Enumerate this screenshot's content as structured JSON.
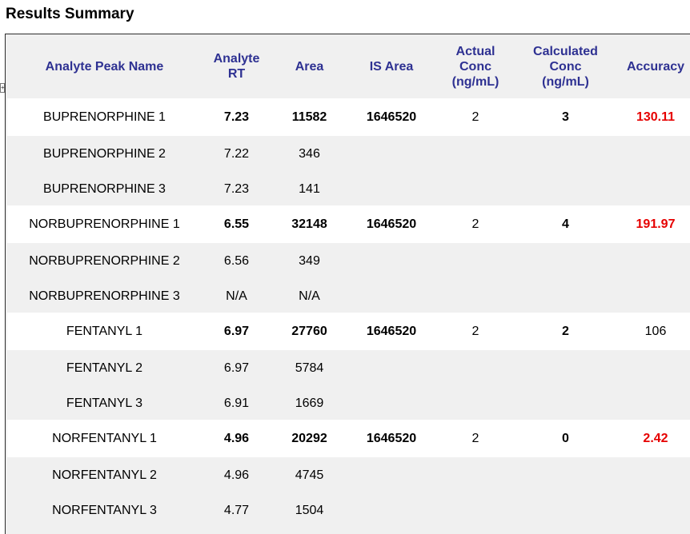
{
  "title": "Results Summary",
  "headers": {
    "name": "Analyte Peak Name",
    "rt": [
      "Analyte",
      "RT"
    ],
    "area": "Area",
    "is_area": "IS Area",
    "actual": [
      "Actual",
      "Conc",
      "(ng/mL)"
    ],
    "calc": [
      "Calculated",
      "Conc",
      "(ng/mL)"
    ],
    "accuracy": "Accuracy"
  },
  "colors": {
    "header_text": "#2e3192",
    "flag_red": "#e60000"
  },
  "rows": [
    {
      "name": "BUPRENORPHINE 1",
      "rt": "7.23",
      "area": "11582",
      "is_area": "1646520",
      "actual": "2",
      "calc": "3",
      "accuracy": "130.11"
    },
    {
      "name": "BUPRENORPHINE 2",
      "rt": "7.22",
      "area": "346"
    },
    {
      "name": "BUPRENORPHINE 3",
      "rt": "7.23",
      "area": "141"
    },
    {
      "name": "NORBUPRENORPHINE 1",
      "rt": "6.55",
      "area": "32148",
      "is_area": "1646520",
      "actual": "2",
      "calc": "4",
      "accuracy": "191.97"
    },
    {
      "name": "NORBUPRENORPHINE 2",
      "rt": "6.56",
      "area": "349"
    },
    {
      "name": "NORBUPRENORPHINE 3",
      "rt": "N/A",
      "area": "N/A"
    },
    {
      "name": "FENTANYL 1",
      "rt": "6.97",
      "area": "27760",
      "is_area": "1646520",
      "actual": "2",
      "calc": "2",
      "accuracy": "106"
    },
    {
      "name": "FENTANYL 2",
      "rt": "6.97",
      "area": "5784"
    },
    {
      "name": "FENTANYL 3",
      "rt": "6.91",
      "area": "1669"
    },
    {
      "name": "NORFENTANYL 1",
      "rt": "4.96",
      "area": "20292",
      "is_area": "1646520",
      "actual": "2",
      "calc": "0",
      "accuracy": "2.42"
    },
    {
      "name": "NORFENTANYL 2",
      "rt": "4.96",
      "area": "4745"
    },
    {
      "name": "NORFENTANYL 3",
      "rt": "4.77",
      "area": "1504"
    }
  ]
}
